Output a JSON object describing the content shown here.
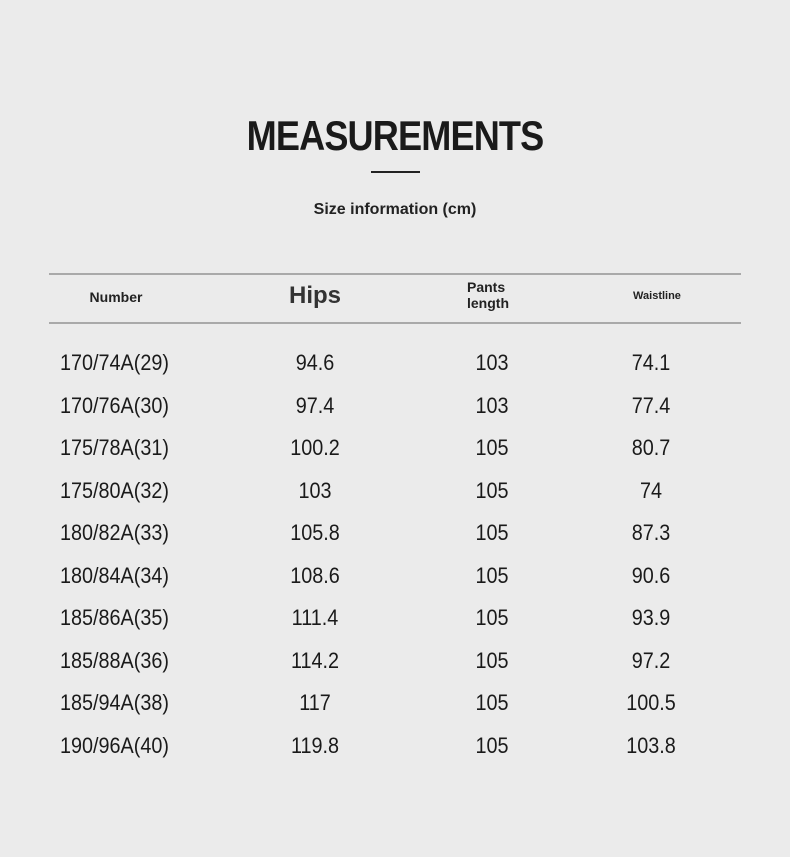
{
  "title": "MEASUREMENTS",
  "subtitle": "Size information (cm)",
  "columns": {
    "number": "Number",
    "hips": "Hips",
    "pants_length_line1": "Pants",
    "pants_length_line2": "length",
    "waistline": "Waistline"
  },
  "rows": [
    {
      "number": "170/74A(29)",
      "hips": "94.6",
      "pants_length": "103",
      "waistline": "74.1"
    },
    {
      "number": "170/76A(30)",
      "hips": "97.4",
      "pants_length": "103",
      "waistline": "77.4"
    },
    {
      "number": "175/78A(31)",
      "hips": "100.2",
      "pants_length": "105",
      "waistline": "80.7"
    },
    {
      "number": "175/80A(32)",
      "hips": "103",
      "pants_length": "105",
      "waistline": "74"
    },
    {
      "number": "180/82A(33)",
      "hips": "105.8",
      "pants_length": "105",
      "waistline": "87.3"
    },
    {
      "number": "180/84A(34)",
      "hips": "108.6",
      "pants_length": "105",
      "waistline": "90.6"
    },
    {
      "number": "185/86A(35)",
      "hips": "111.4",
      "pants_length": "105",
      "waistline": "93.9"
    },
    {
      "number": "185/88A(36)",
      "hips": "114.2",
      "pants_length": "105",
      "waistline": "97.2"
    },
    {
      "number": "185/94A(38)",
      "hips": "117",
      "pants_length": "105",
      "waistline": "100.5"
    },
    {
      "number": "190/96A(40)",
      "hips": "119.8",
      "pants_length": "105",
      "waistline": "103.8"
    }
  ]
}
